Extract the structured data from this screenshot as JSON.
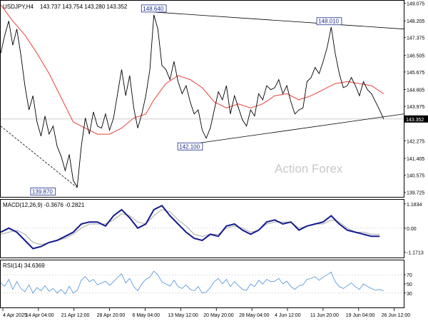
{
  "chart_data": {
    "type": "line",
    "title": "USDJPY,H4",
    "ohlc_text": "143.737 143.754 143.280 143.352",
    "watermark": "Action Forex",
    "x_ticks": [
      "4 Apr 2025",
      "14 Apr 04:00",
      "21 Apr 12:00",
      "28 Apr 20:00",
      "6 May 04:00",
      "13 May 12:00",
      "20 May 20:00",
      "28 May 04:00",
      "4 Jun 12:00",
      "11 Jun 20:00",
      "19 Jun 04:00",
      "26 Jun 12:00"
    ],
    "colors": {
      "price": "#000000",
      "ma": "#e8413a",
      "macd": "#141a8c",
      "signal": "#a8a8a8",
      "rsi": "#4a90d9",
      "grid": "#c8c8c8",
      "current_box": "#000000",
      "label_text": "#1c2e8a"
    },
    "price_panel": {
      "ylim": [
        139.5,
        149.2
      ],
      "y_ticks": [
        "149.075",
        "148.205",
        "147.375",
        "146.505",
        "145.675",
        "144.805",
        "143.975",
        "143.352",
        "142.275",
        "141.405",
        "140.575",
        "139.725"
      ],
      "current_price": "143.352",
      "annotations": [
        {
          "text": "148.640",
          "x": 0.38,
          "y": 148.64
        },
        {
          "text": "148.010",
          "x": 0.815,
          "y": 148.01
        },
        {
          "text": "142.100",
          "x": 0.47,
          "y": 142.1
        },
        {
          "text": "139.870",
          "x": 0.105,
          "y": 139.87
        }
      ],
      "trendlines": [
        {
          "x1": 0.38,
          "y1": 148.64,
          "x2": 1.0,
          "y2": 147.8,
          "style": "solid"
        },
        {
          "x1": 0.47,
          "y1": 142.1,
          "x2": 1.0,
          "y2": 143.6,
          "style": "solid"
        },
        {
          "x1": 0.0,
          "y1": 143.0,
          "x2": 0.19,
          "y2": 139.95,
          "style": "dashed"
        }
      ],
      "close_series": [
        [
          0.0,
          146.6
        ],
        [
          0.01,
          147.5
        ],
        [
          0.02,
          148.2
        ],
        [
          0.03,
          147.0
        ],
        [
          0.04,
          147.8
        ],
        [
          0.05,
          146.5
        ],
        [
          0.06,
          145.0
        ],
        [
          0.07,
          143.8
        ],
        [
          0.08,
          144.5
        ],
        [
          0.09,
          143.2
        ],
        [
          0.1,
          142.5
        ],
        [
          0.11,
          143.5
        ],
        [
          0.12,
          142.6
        ],
        [
          0.13,
          143.0
        ],
        [
          0.14,
          142.0
        ],
        [
          0.15,
          141.5
        ],
        [
          0.16,
          140.8
        ],
        [
          0.17,
          141.6
        ],
        [
          0.18,
          140.3
        ],
        [
          0.19,
          140.0
        ],
        [
          0.2,
          142.0
        ],
        [
          0.21,
          143.4
        ],
        [
          0.22,
          142.6
        ],
        [
          0.23,
          143.7
        ],
        [
          0.24,
          143.0
        ],
        [
          0.25,
          142.9
        ],
        [
          0.26,
          143.6
        ],
        [
          0.27,
          142.8
        ],
        [
          0.28,
          143.4
        ],
        [
          0.29,
          144.6
        ],
        [
          0.3,
          145.8
        ],
        [
          0.31,
          144.5
        ],
        [
          0.32,
          145.5
        ],
        [
          0.33,
          143.9
        ],
        [
          0.34,
          142.9
        ],
        [
          0.35,
          143.6
        ],
        [
          0.36,
          144.5
        ],
        [
          0.37,
          145.8
        ],
        [
          0.38,
          148.5
        ],
        [
          0.39,
          147.8
        ],
        [
          0.4,
          146.0
        ],
        [
          0.41,
          145.8
        ],
        [
          0.42,
          145.3
        ],
        [
          0.43,
          146.2
        ],
        [
          0.44,
          145.2
        ],
        [
          0.45,
          144.6
        ],
        [
          0.46,
          145.0
        ],
        [
          0.47,
          144.2
        ],
        [
          0.48,
          143.6
        ],
        [
          0.49,
          143.8
        ],
        [
          0.5,
          142.8
        ],
        [
          0.51,
          142.4
        ],
        [
          0.52,
          142.9
        ],
        [
          0.53,
          143.8
        ],
        [
          0.54,
          144.7
        ],
        [
          0.55,
          144.3
        ],
        [
          0.56,
          145.0
        ],
        [
          0.57,
          143.6
        ],
        [
          0.58,
          144.5
        ],
        [
          0.59,
          143.9
        ],
        [
          0.6,
          143.3
        ],
        [
          0.61,
          143.0
        ],
        [
          0.62,
          143.8
        ],
        [
          0.63,
          143.5
        ],
        [
          0.64,
          144.6
        ],
        [
          0.65,
          144.3
        ],
        [
          0.66,
          145.0
        ],
        [
          0.67,
          144.8
        ],
        [
          0.68,
          144.9
        ],
        [
          0.69,
          145.3
        ],
        [
          0.7,
          144.6
        ],
        [
          0.71,
          145.0
        ],
        [
          0.72,
          144.2
        ],
        [
          0.73,
          143.6
        ],
        [
          0.74,
          143.8
        ],
        [
          0.75,
          143.9
        ],
        [
          0.76,
          145.2
        ],
        [
          0.77,
          145.4
        ],
        [
          0.78,
          145.9
        ],
        [
          0.79,
          145.6
        ],
        [
          0.8,
          146.2
        ],
        [
          0.81,
          146.9
        ],
        [
          0.82,
          147.9
        ],
        [
          0.83,
          146.6
        ],
        [
          0.84,
          145.6
        ],
        [
          0.85,
          144.9
        ],
        [
          0.86,
          145.0
        ],
        [
          0.87,
          145.4
        ],
        [
          0.88,
          145.0
        ],
        [
          0.89,
          144.5
        ],
        [
          0.9,
          145.2
        ],
        [
          0.91,
          144.8
        ],
        [
          0.92,
          144.6
        ],
        [
          0.93,
          144.2
        ],
        [
          0.94,
          143.8
        ],
        [
          0.95,
          143.35
        ]
      ],
      "ma_series": [
        [
          0.0,
          149.0
        ],
        [
          0.03,
          148.2
        ],
        [
          0.06,
          147.5
        ],
        [
          0.09,
          146.6
        ],
        [
          0.12,
          145.6
        ],
        [
          0.15,
          144.4
        ],
        [
          0.18,
          143.2
        ],
        [
          0.21,
          142.9
        ],
        [
          0.24,
          142.6
        ],
        [
          0.27,
          142.6
        ],
        [
          0.3,
          142.9
        ],
        [
          0.33,
          143.4
        ],
        [
          0.36,
          143.6
        ],
        [
          0.38,
          144.3
        ],
        [
          0.41,
          145.1
        ],
        [
          0.44,
          145.5
        ],
        [
          0.47,
          145.3
        ],
        [
          0.5,
          144.9
        ],
        [
          0.53,
          144.2
        ],
        [
          0.56,
          143.9
        ],
        [
          0.59,
          144.1
        ],
        [
          0.62,
          143.9
        ],
        [
          0.65,
          144.1
        ],
        [
          0.68,
          144.5
        ],
        [
          0.71,
          144.6
        ],
        [
          0.74,
          144.3
        ],
        [
          0.77,
          144.5
        ],
        [
          0.8,
          144.8
        ],
        [
          0.83,
          145.1
        ],
        [
          0.86,
          145.2
        ],
        [
          0.89,
          145.1
        ],
        [
          0.92,
          145.0
        ],
        [
          0.95,
          144.6
        ]
      ]
    },
    "macd_panel": {
      "label": "MACD(12,26,9) -0.3676 -0.2821",
      "ylim": [
        -1.4,
        1.35
      ],
      "y_ticks": [
        "1.1834",
        "0.00",
        "-1.1713"
      ],
      "macd_series": [
        [
          0.0,
          -0.2
        ],
        [
          0.02,
          0.0
        ],
        [
          0.04,
          -0.2
        ],
        [
          0.06,
          -0.6
        ],
        [
          0.08,
          -1.0
        ],
        [
          0.1,
          -0.9
        ],
        [
          0.12,
          -0.7
        ],
        [
          0.14,
          -0.6
        ],
        [
          0.16,
          -0.4
        ],
        [
          0.18,
          -0.2
        ],
        [
          0.2,
          0.2
        ],
        [
          0.22,
          0.3
        ],
        [
          0.24,
          0.3
        ],
        [
          0.26,
          0.1
        ],
        [
          0.28,
          0.6
        ],
        [
          0.3,
          0.9
        ],
        [
          0.32,
          0.5
        ],
        [
          0.34,
          0.0
        ],
        [
          0.36,
          0.2
        ],
        [
          0.38,
          0.9
        ],
        [
          0.4,
          1.1
        ],
        [
          0.42,
          0.6
        ],
        [
          0.44,
          0.2
        ],
        [
          0.46,
          -0.2
        ],
        [
          0.48,
          -0.5
        ],
        [
          0.5,
          -0.6
        ],
        [
          0.52,
          -0.3
        ],
        [
          0.54,
          -0.4
        ],
        [
          0.56,
          0.1
        ],
        [
          0.58,
          0.2
        ],
        [
          0.6,
          -0.1
        ],
        [
          0.62,
          -0.3
        ],
        [
          0.64,
          -0.1
        ],
        [
          0.66,
          0.3
        ],
        [
          0.68,
          0.4
        ],
        [
          0.7,
          0.2
        ],
        [
          0.72,
          0.3
        ],
        [
          0.74,
          -0.1
        ],
        [
          0.76,
          0.1
        ],
        [
          0.78,
          0.2
        ],
        [
          0.8,
          0.3
        ],
        [
          0.82,
          0.6
        ],
        [
          0.84,
          0.2
        ],
        [
          0.86,
          -0.1
        ],
        [
          0.88,
          -0.2
        ],
        [
          0.9,
          -0.3
        ],
        [
          0.92,
          -0.4
        ],
        [
          0.94,
          -0.4
        ]
      ],
      "signal_series": [
        [
          0.0,
          -0.3
        ],
        [
          0.02,
          -0.2
        ],
        [
          0.04,
          -0.1
        ],
        [
          0.06,
          -0.3
        ],
        [
          0.08,
          -0.7
        ],
        [
          0.1,
          -0.8
        ],
        [
          0.12,
          -0.7
        ],
        [
          0.14,
          -0.6
        ],
        [
          0.16,
          -0.5
        ],
        [
          0.18,
          -0.3
        ],
        [
          0.2,
          0.0
        ],
        [
          0.22,
          0.2
        ],
        [
          0.24,
          0.2
        ],
        [
          0.26,
          0.2
        ],
        [
          0.28,
          0.4
        ],
        [
          0.3,
          0.7
        ],
        [
          0.32,
          0.6
        ],
        [
          0.34,
          0.3
        ],
        [
          0.36,
          0.2
        ],
        [
          0.38,
          0.6
        ],
        [
          0.4,
          0.9
        ],
        [
          0.42,
          0.8
        ],
        [
          0.44,
          0.4
        ],
        [
          0.46,
          0.1
        ],
        [
          0.48,
          -0.3
        ],
        [
          0.5,
          -0.4
        ],
        [
          0.52,
          -0.3
        ],
        [
          0.54,
          -0.3
        ],
        [
          0.56,
          0.0
        ],
        [
          0.58,
          0.1
        ],
        [
          0.6,
          0.0
        ],
        [
          0.62,
          -0.2
        ],
        [
          0.64,
          -0.1
        ],
        [
          0.66,
          0.2
        ],
        [
          0.68,
          0.3
        ],
        [
          0.7,
          0.3
        ],
        [
          0.72,
          0.3
        ],
        [
          0.74,
          0.0
        ],
        [
          0.76,
          0.1
        ],
        [
          0.78,
          0.2
        ],
        [
          0.8,
          0.2
        ],
        [
          0.82,
          0.4
        ],
        [
          0.84,
          0.3
        ],
        [
          0.86,
          0.0
        ],
        [
          0.88,
          -0.2
        ],
        [
          0.9,
          -0.2
        ],
        [
          0.92,
          -0.3
        ],
        [
          0.94,
          -0.3
        ]
      ]
    },
    "rsi_panel": {
      "label": "RSI(14) 34.6369",
      "ylim": [
        0,
        100
      ],
      "y_ticks": [
        "70",
        "50",
        "30"
      ],
      "levels": [
        70,
        30
      ],
      "rsi_series": [
        [
          0.0,
          52
        ],
        [
          0.01,
          45
        ],
        [
          0.02,
          60
        ],
        [
          0.03,
          38
        ],
        [
          0.04,
          55
        ],
        [
          0.05,
          40
        ],
        [
          0.06,
          33
        ],
        [
          0.07,
          48
        ],
        [
          0.08,
          30
        ],
        [
          0.09,
          42
        ],
        [
          0.1,
          35
        ],
        [
          0.11,
          46
        ],
        [
          0.12,
          34
        ],
        [
          0.13,
          40
        ],
        [
          0.14,
          30
        ],
        [
          0.15,
          38
        ],
        [
          0.16,
          28
        ],
        [
          0.17,
          45
        ],
        [
          0.18,
          30
        ],
        [
          0.19,
          36
        ],
        [
          0.2,
          58
        ],
        [
          0.21,
          66
        ],
        [
          0.22,
          55
        ],
        [
          0.23,
          60
        ],
        [
          0.24,
          48
        ],
        [
          0.25,
          52
        ],
        [
          0.26,
          56
        ],
        [
          0.27,
          47
        ],
        [
          0.28,
          55
        ],
        [
          0.29,
          64
        ],
        [
          0.3,
          72
        ],
        [
          0.31,
          52
        ],
        [
          0.32,
          62
        ],
        [
          0.33,
          44
        ],
        [
          0.34,
          35
        ],
        [
          0.35,
          50
        ],
        [
          0.36,
          60
        ],
        [
          0.37,
          65
        ],
        [
          0.38,
          78
        ],
        [
          0.39,
          70
        ],
        [
          0.4,
          54
        ],
        [
          0.41,
          50
        ],
        [
          0.42,
          45
        ],
        [
          0.43,
          58
        ],
        [
          0.44,
          44
        ],
        [
          0.45,
          40
        ],
        [
          0.46,
          48
        ],
        [
          0.47,
          38
        ],
        [
          0.48,
          35
        ],
        [
          0.49,
          44
        ],
        [
          0.5,
          30
        ],
        [
          0.51,
          32
        ],
        [
          0.52,
          42
        ],
        [
          0.53,
          55
        ],
        [
          0.54,
          62
        ],
        [
          0.55,
          50
        ],
        [
          0.56,
          60
        ],
        [
          0.57,
          44
        ],
        [
          0.58,
          55
        ],
        [
          0.59,
          46
        ],
        [
          0.6,
          38
        ],
        [
          0.61,
          36
        ],
        [
          0.62,
          50
        ],
        [
          0.63,
          44
        ],
        [
          0.64,
          58
        ],
        [
          0.65,
          50
        ],
        [
          0.66,
          60
        ],
        [
          0.67,
          55
        ],
        [
          0.68,
          56
        ],
        [
          0.69,
          62
        ],
        [
          0.7,
          50
        ],
        [
          0.71,
          56
        ],
        [
          0.72,
          44
        ],
        [
          0.73,
          38
        ],
        [
          0.74,
          46
        ],
        [
          0.75,
          48
        ],
        [
          0.76,
          60
        ],
        [
          0.77,
          62
        ],
        [
          0.78,
          66
        ],
        [
          0.79,
          58
        ],
        [
          0.8,
          65
        ],
        [
          0.81,
          70
        ],
        [
          0.82,
          76
        ],
        [
          0.83,
          55
        ],
        [
          0.84,
          44
        ],
        [
          0.85,
          40
        ],
        [
          0.86,
          46
        ],
        [
          0.87,
          52
        ],
        [
          0.88,
          44
        ],
        [
          0.89,
          38
        ],
        [
          0.9,
          50
        ],
        [
          0.91,
          44
        ],
        [
          0.92,
          40
        ],
        [
          0.93,
          36
        ],
        [
          0.94,
          38
        ],
        [
          0.95,
          34.6
        ]
      ]
    }
  }
}
